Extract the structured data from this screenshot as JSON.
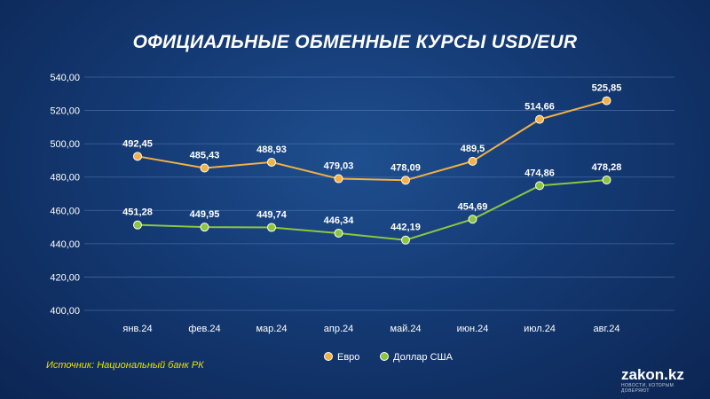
{
  "title": "ОФИЦИАЛЬНЫЕ ОБМЕННЫЕ КУРСЫ USD/EUR",
  "source": "Источник: Национальный банк РК",
  "brand": {
    "name": "zakon.kz",
    "tagline": "НОВОСТИ, КОТОРЫМ ДОВЕРЯЮТ"
  },
  "chart_data": {
    "type": "line",
    "categories": [
      "янв.24",
      "фев.24",
      "мар.24",
      "апр.24",
      "май.24",
      "июн.24",
      "июл.24",
      "авг.24"
    ],
    "series": [
      {
        "name": "Евро",
        "color": "#f2b045",
        "values": [
          492.45,
          485.43,
          488.93,
          479.03,
          478.09,
          489.5,
          514.66,
          525.85
        ],
        "labels": [
          "492,45",
          "485,43",
          "488,93",
          "479,03",
          "478,09",
          "489,5",
          "514,66",
          "525,85"
        ]
      },
      {
        "name": "Доллар США",
        "color": "#8cc63f",
        "values": [
          451.28,
          449.95,
          449.74,
          446.34,
          442.19,
          454.69,
          474.86,
          478.28
        ],
        "labels": [
          "451,28",
          "449,95",
          "449,74",
          "446,34",
          "442,19",
          "454,69",
          "474,86",
          "478,28"
        ]
      }
    ],
    "ylim": [
      400,
      540
    ],
    "yticks": [
      "400,00",
      "420,00",
      "440,00",
      "460,00",
      "480,00",
      "500,00",
      "520,00",
      "540,00"
    ],
    "grid": true,
    "legend_position": "bottom-center"
  }
}
